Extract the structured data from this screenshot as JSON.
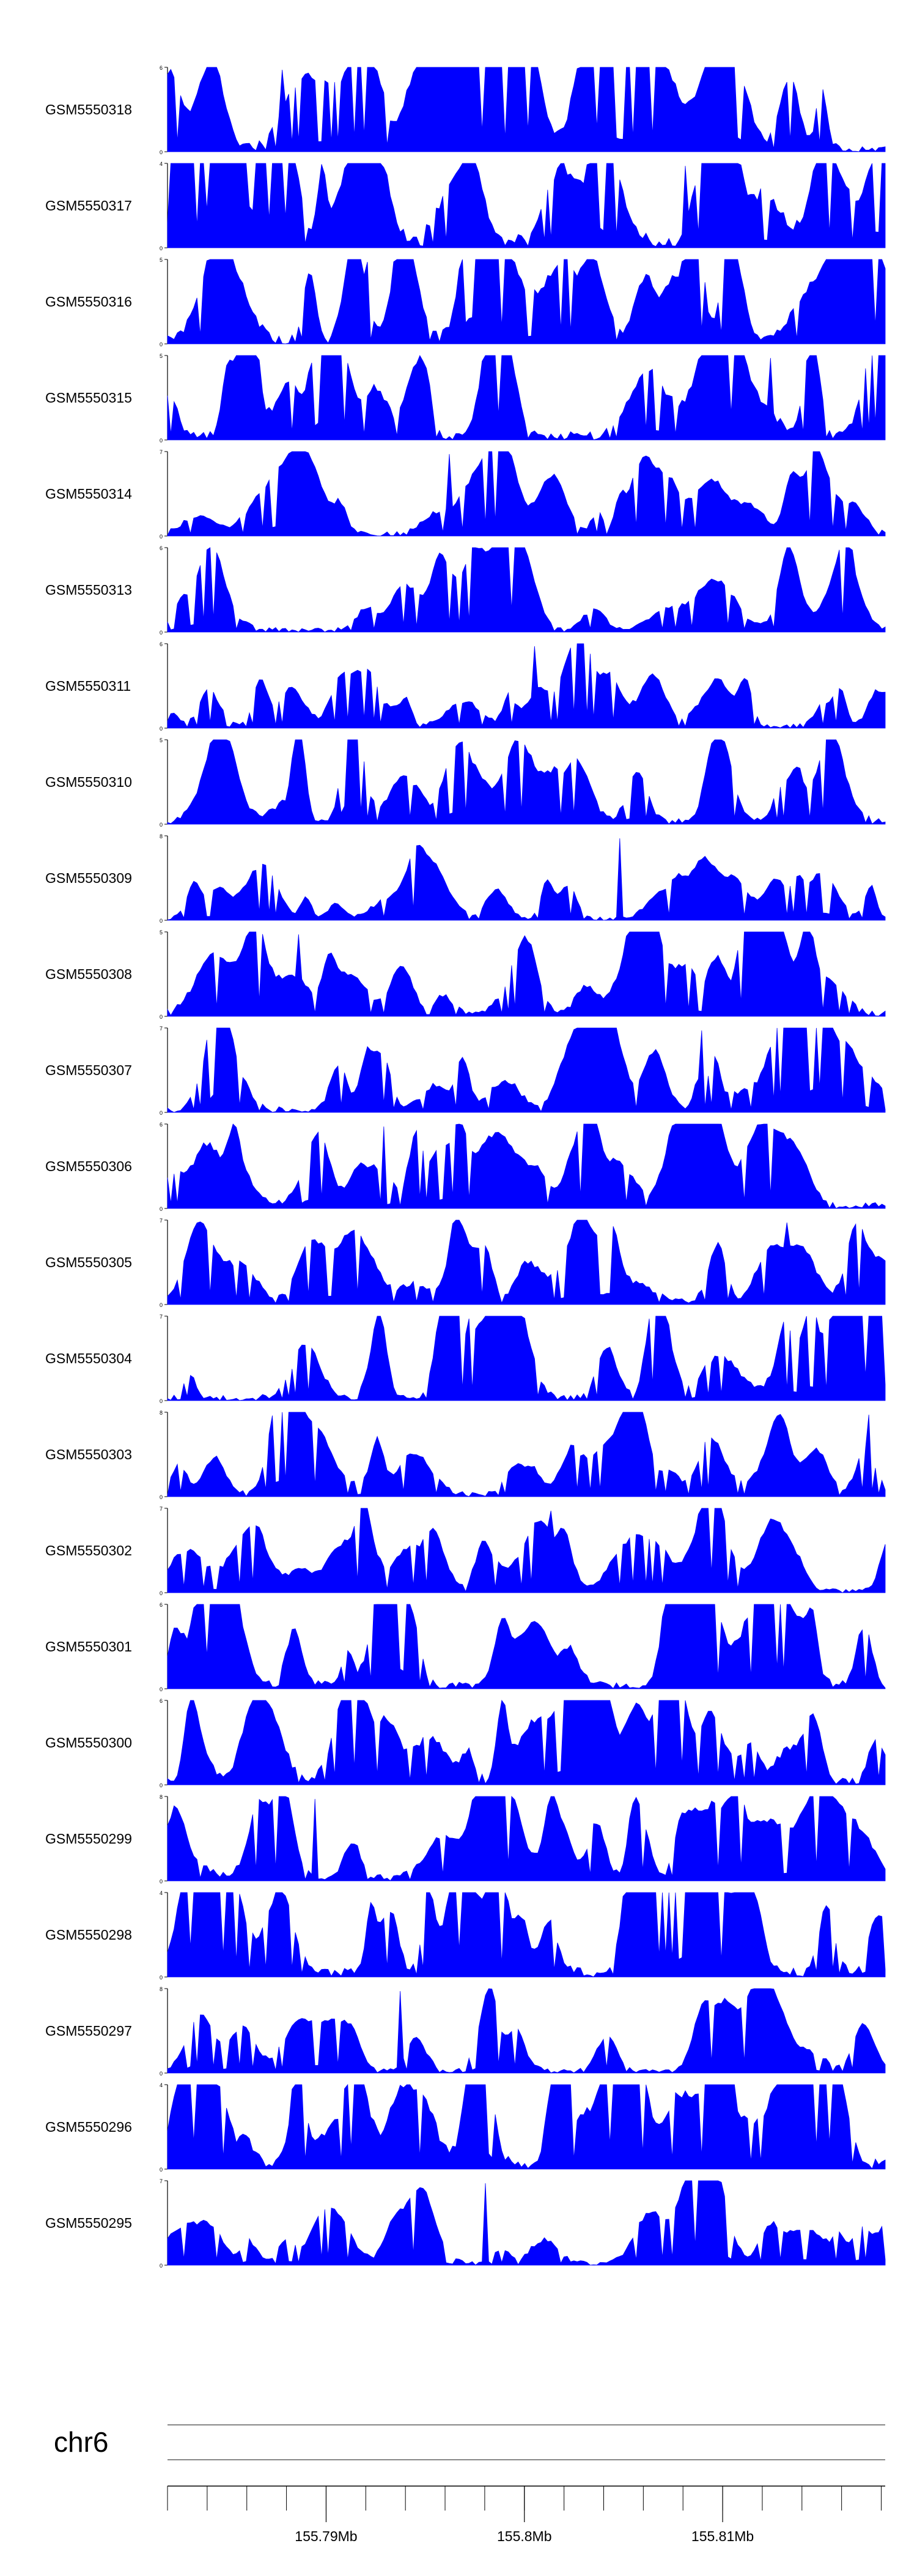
{
  "colors": {
    "signal_fill": "#0000ff",
    "axis": "#000000",
    "ideogram": "#888888"
  },
  "chart_data": {
    "type": "area",
    "chromosome": "chr6",
    "x_range_mb": [
      155.782,
      155.8182
    ],
    "x_ticks_labeled": [
      {
        "position_mb": 155.79,
        "label": "155.79Mb"
      },
      {
        "position_mb": 155.8,
        "label": "155.8Mb"
      },
      {
        "position_mb": 155.81,
        "label": "155.81Mb"
      }
    ],
    "x_ticks_minor_mb": [
      155.782,
      155.784,
      155.786,
      155.788,
      155.79,
      155.792,
      155.794,
      155.796,
      155.798,
      155.8,
      155.802,
      155.804,
      155.806,
      155.808,
      155.81,
      155.812,
      155.814,
      155.816,
      155.818
    ],
    "tracks": [
      {
        "name": "GSM5550318",
        "ymin": 0,
        "ymax": 6,
        "y_axis_labels": [
          "6",
          "0"
        ],
        "n_points": 220,
        "mean": 1.6,
        "peak_count": 30
      },
      {
        "name": "GSM5550317",
        "ymin": 0,
        "ymax": 4,
        "y_axis_labels": [
          "4",
          "0"
        ],
        "n_points": 220,
        "mean": 1.5,
        "peak_count": 30
      },
      {
        "name": "GSM5550316",
        "ymin": 0,
        "ymax": 5,
        "y_axis_labels": [
          "5",
          "0"
        ],
        "n_points": 220,
        "mean": 1.5,
        "peak_count": 30
      },
      {
        "name": "GSM5550315",
        "ymin": 0,
        "ymax": 5,
        "y_axis_labels": [
          "5",
          "0"
        ],
        "n_points": 220,
        "mean": 1.4,
        "peak_count": 30
      },
      {
        "name": "GSM5550314",
        "ymin": 0,
        "ymax": 7,
        "y_axis_labels": [
          "7",
          "0"
        ],
        "n_points": 220,
        "mean": 1.1,
        "peak_count": 30
      },
      {
        "name": "GSM5550313",
        "ymin": 0,
        "ymax": 6,
        "y_axis_labels": [
          "6",
          "0"
        ],
        "n_points": 220,
        "mean": 0.9,
        "peak_count": 30
      },
      {
        "name": "GSM5550311",
        "ymin": 0,
        "ymax": 6,
        "y_axis_labels": [
          "6",
          "0"
        ],
        "n_points": 220,
        "mean": 0.9,
        "peak_count": 30
      },
      {
        "name": "GSM5550310",
        "ymin": 0,
        "ymax": 5,
        "y_axis_labels": [
          "5",
          "0"
        ],
        "n_points": 220,
        "mean": 1.0,
        "peak_count": 30
      },
      {
        "name": "GSM5550309",
        "ymin": 0,
        "ymax": 8,
        "y_axis_labels": [
          "8",
          "0"
        ],
        "n_points": 220,
        "mean": 1.0,
        "peak_count": 30
      },
      {
        "name": "GSM5550308",
        "ymin": 0,
        "ymax": 5,
        "y_axis_labels": [
          "5",
          "0"
        ],
        "n_points": 220,
        "mean": 1.0,
        "peak_count": 30
      },
      {
        "name": "GSM5550307",
        "ymin": 0,
        "ymax": 7,
        "y_axis_labels": [
          "7",
          "0"
        ],
        "n_points": 220,
        "mean": 1.4,
        "peak_count": 30
      },
      {
        "name": "GSM5550306",
        "ymin": 0,
        "ymax": 6,
        "y_axis_labels": [
          "6",
          "0"
        ],
        "n_points": 220,
        "mean": 1.3,
        "peak_count": 30
      },
      {
        "name": "GSM5550305",
        "ymin": 0,
        "ymax": 7,
        "y_axis_labels": [
          "7",
          "0"
        ],
        "n_points": 220,
        "mean": 1.3,
        "peak_count": 30
      },
      {
        "name": "GSM5550304",
        "ymin": 0,
        "ymax": 7,
        "y_axis_labels": [
          "7",
          "0"
        ],
        "n_points": 220,
        "mean": 1.4,
        "peak_count": 30
      },
      {
        "name": "GSM5550303",
        "ymin": 0,
        "ymax": 8,
        "y_axis_labels": [
          "8",
          "0"
        ],
        "n_points": 220,
        "mean": 1.3,
        "peak_count": 30
      },
      {
        "name": "GSM5550302",
        "ymin": 0,
        "ymax": 7,
        "y_axis_labels": [
          "7",
          "0"
        ],
        "n_points": 220,
        "mean": 1.2,
        "peak_count": 30
      },
      {
        "name": "GSM5550301",
        "ymin": 0,
        "ymax": 6,
        "y_axis_labels": [
          "6",
          "0"
        ],
        "n_points": 220,
        "mean": 1.5,
        "peak_count": 30
      },
      {
        "name": "GSM5550300",
        "ymin": 0,
        "ymax": 6,
        "y_axis_labels": [
          "6",
          "0"
        ],
        "n_points": 220,
        "mean": 1.5,
        "peak_count": 30
      },
      {
        "name": "GSM5550299",
        "ymin": 0,
        "ymax": 8,
        "y_axis_labels": [
          "8",
          "0"
        ],
        "n_points": 220,
        "mean": 1.8,
        "peak_count": 30
      },
      {
        "name": "GSM5550298",
        "ymin": 0,
        "ymax": 4,
        "y_axis_labels": [
          "4",
          "0"
        ],
        "n_points": 220,
        "mean": 1.3,
        "peak_count": 30
      },
      {
        "name": "GSM5550297",
        "ymin": 0,
        "ymax": 8,
        "y_axis_labels": [
          "8",
          "0"
        ],
        "n_points": 220,
        "mean": 1.0,
        "peak_count": 30
      },
      {
        "name": "GSM5550296",
        "ymin": 0,
        "ymax": 4,
        "y_axis_labels": [
          "4",
          "0"
        ],
        "n_points": 220,
        "mean": 1.4,
        "peak_count": 30
      },
      {
        "name": "GSM5550295",
        "ymin": 0,
        "ymax": 7,
        "y_axis_labels": [
          "7",
          "0"
        ],
        "n_points": 220,
        "mean": 1.1,
        "peak_count": 30
      }
    ],
    "legend": "none",
    "grid": false
  }
}
